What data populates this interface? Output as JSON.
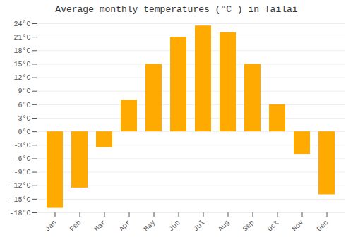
{
  "chart_data": {
    "type": "bar",
    "title": "Average monthly temperatures (°C ) in Tailai",
    "categories": [
      "Jan",
      "Feb",
      "Mar",
      "Apr",
      "May",
      "Jun",
      "Jul",
      "Aug",
      "Sep",
      "Oct",
      "Nov",
      "Dec"
    ],
    "values": [
      -17,
      -12.5,
      -3.5,
      7,
      15,
      21,
      23.5,
      22,
      15,
      6,
      -5,
      -14
    ],
    "color": "#FFAA00",
    "ylim": [
      -18,
      24
    ],
    "yticks": [
      {
        "value": -18,
        "label": "-18°C"
      },
      {
        "value": -15,
        "label": "-15°C"
      },
      {
        "value": -12,
        "label": "-12°C"
      },
      {
        "value": -9,
        "label": "-9°C"
      },
      {
        "value": -6,
        "label": "-6°C"
      },
      {
        "value": -3,
        "label": "-3°C"
      },
      {
        "value": 0,
        "label": "0°C"
      },
      {
        "value": 3,
        "label": "3°C"
      },
      {
        "value": 6,
        "label": "6°C"
      },
      {
        "value": 9,
        "label": "9°C"
      },
      {
        "value": 12,
        "label": "12°C"
      },
      {
        "value": 15,
        "label": "15°C"
      },
      {
        "value": 18,
        "label": "18°C"
      },
      {
        "value": 21,
        "label": "21°C"
      },
      {
        "value": 24,
        "label": "24°C"
      }
    ],
    "grid": true
  }
}
